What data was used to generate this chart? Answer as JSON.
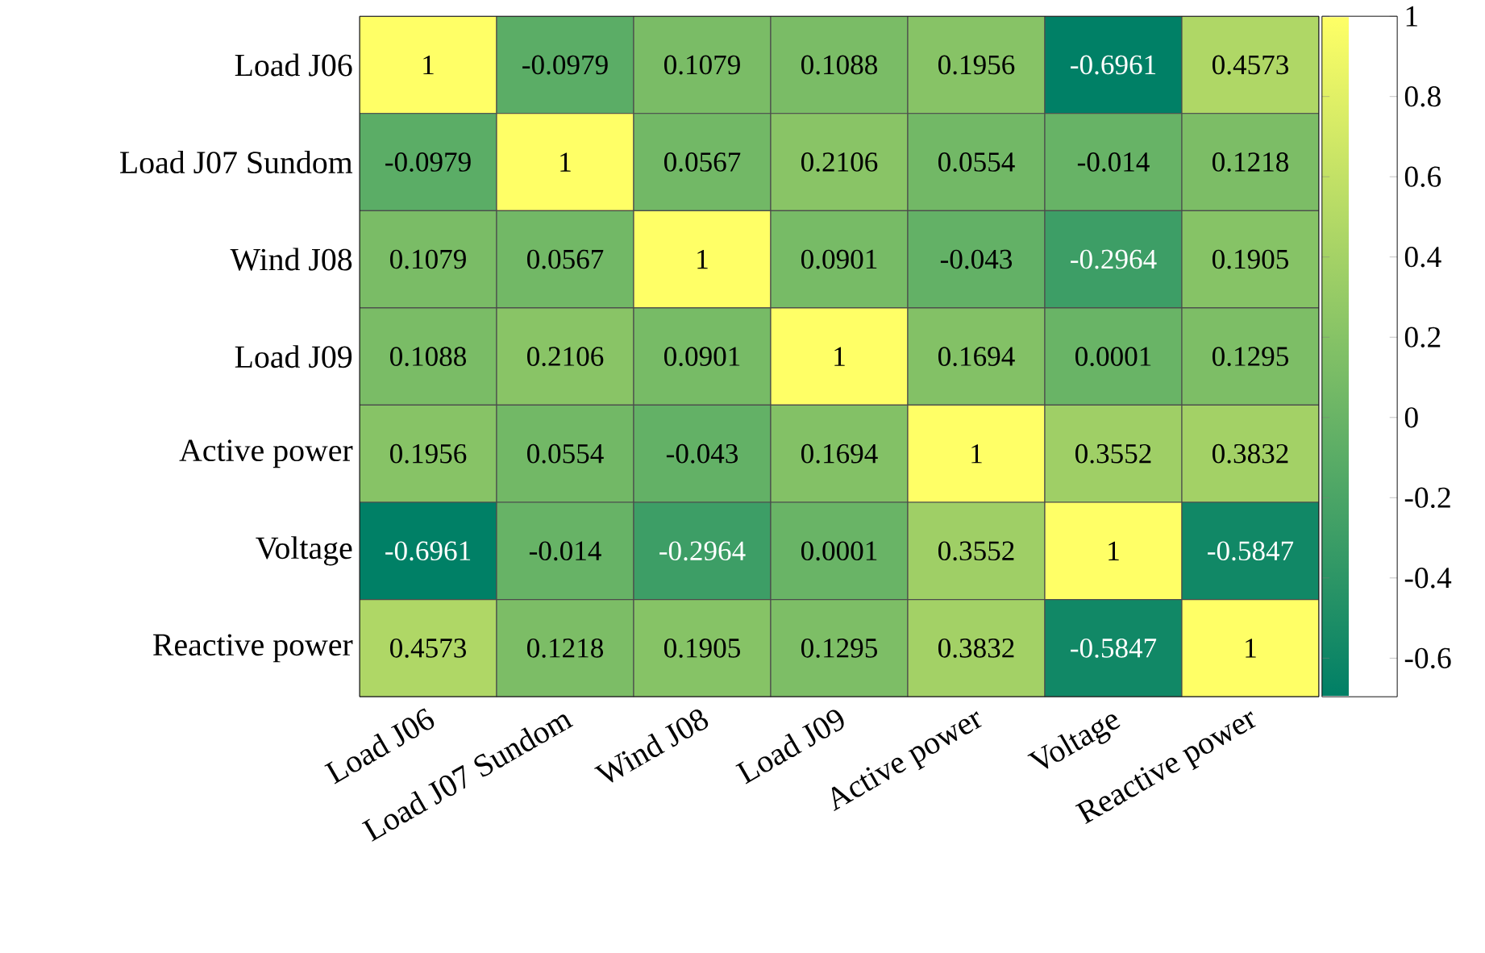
{
  "chart_data": {
    "type": "heatmap",
    "categories": [
      "Load J06",
      "Load J07 Sundom",
      "Wind J08",
      "Load J09",
      "Active power",
      "Voltage",
      "Reactive power"
    ],
    "y_categories": [
      "Load J06",
      "Load J07 Sundom",
      "Wind J08",
      "Load J09",
      "Active power",
      "Voltage",
      "Reactive power"
    ],
    "cells": [
      [
        1,
        -0.0979,
        0.1079,
        0.1088,
        0.1956,
        -0.6961,
        0.4573
      ],
      [
        -0.0979,
        1,
        0.0567,
        0.2106,
        0.0554,
        -0.014,
        0.1218
      ],
      [
        0.1079,
        0.0567,
        1,
        0.0901,
        -0.043,
        -0.2964,
        0.1905
      ],
      [
        0.1088,
        0.2106,
        0.0901,
        1,
        0.1694,
        0.0001,
        0.1295
      ],
      [
        0.1956,
        0.0554,
        -0.043,
        0.1694,
        1,
        0.3552,
        0.3832
      ],
      [
        -0.6961,
        -0.014,
        -0.2964,
        0.0001,
        0.3552,
        1,
        -0.5847
      ],
      [
        0.4573,
        0.1218,
        0.1905,
        0.1295,
        0.3832,
        -0.5847,
        1
      ]
    ],
    "data_labels": true,
    "clim": [
      -0.6961,
      1
    ],
    "cticks": [
      -0.6,
      -0.4,
      -0.2,
      0,
      0.2,
      0.4,
      0.6,
      0.8,
      1
    ]
  }
}
